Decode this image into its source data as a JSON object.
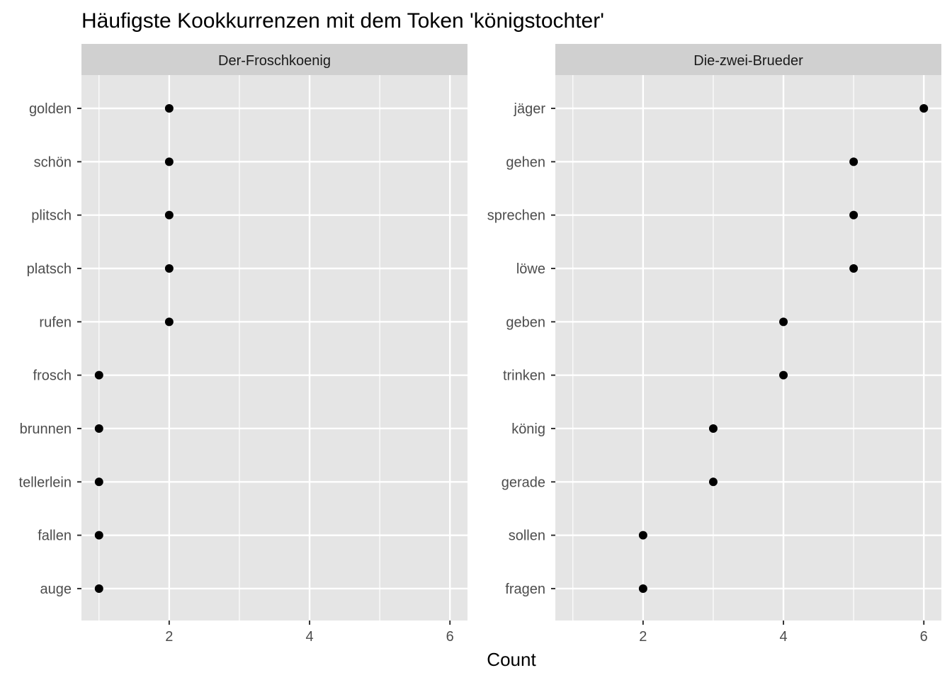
{
  "title": "Häufigste Kookkurrenzen mit dem Token 'königstochter'",
  "xlabel": "Count",
  "colors": {
    "panel_bg": "#e5e5e5",
    "strip_bg": "#d0d0d0",
    "grid": "#ffffff",
    "point": "#000000",
    "tick": "#333333"
  },
  "chart_data": [
    {
      "type": "scatter",
      "facet": "Der-Froschkoenig",
      "categories": [
        "golden",
        "schön",
        "plitsch",
        "platsch",
        "rufen",
        "frosch",
        "brunnen",
        "tellerlein",
        "fallen",
        "auge"
      ],
      "values": [
        2,
        2,
        2,
        2,
        2,
        1,
        1,
        1,
        1,
        1
      ],
      "xlabel": "Count",
      "xlim": [
        0.75,
        6.25
      ],
      "xticks": [
        2,
        4,
        6
      ],
      "grid": true
    },
    {
      "type": "scatter",
      "facet": "Die-zwei-Brueder",
      "categories": [
        "jäger",
        "gehen",
        "sprechen",
        "löwe",
        "geben",
        "trinken",
        "könig",
        "gerade",
        "sollen",
        "fragen"
      ],
      "values": [
        6,
        5,
        5,
        5,
        4,
        4,
        3,
        3,
        2,
        2
      ],
      "xlabel": "Count",
      "xlim": [
        0.75,
        6.25
      ],
      "xticks": [
        2,
        4,
        6
      ],
      "grid": true
    }
  ]
}
